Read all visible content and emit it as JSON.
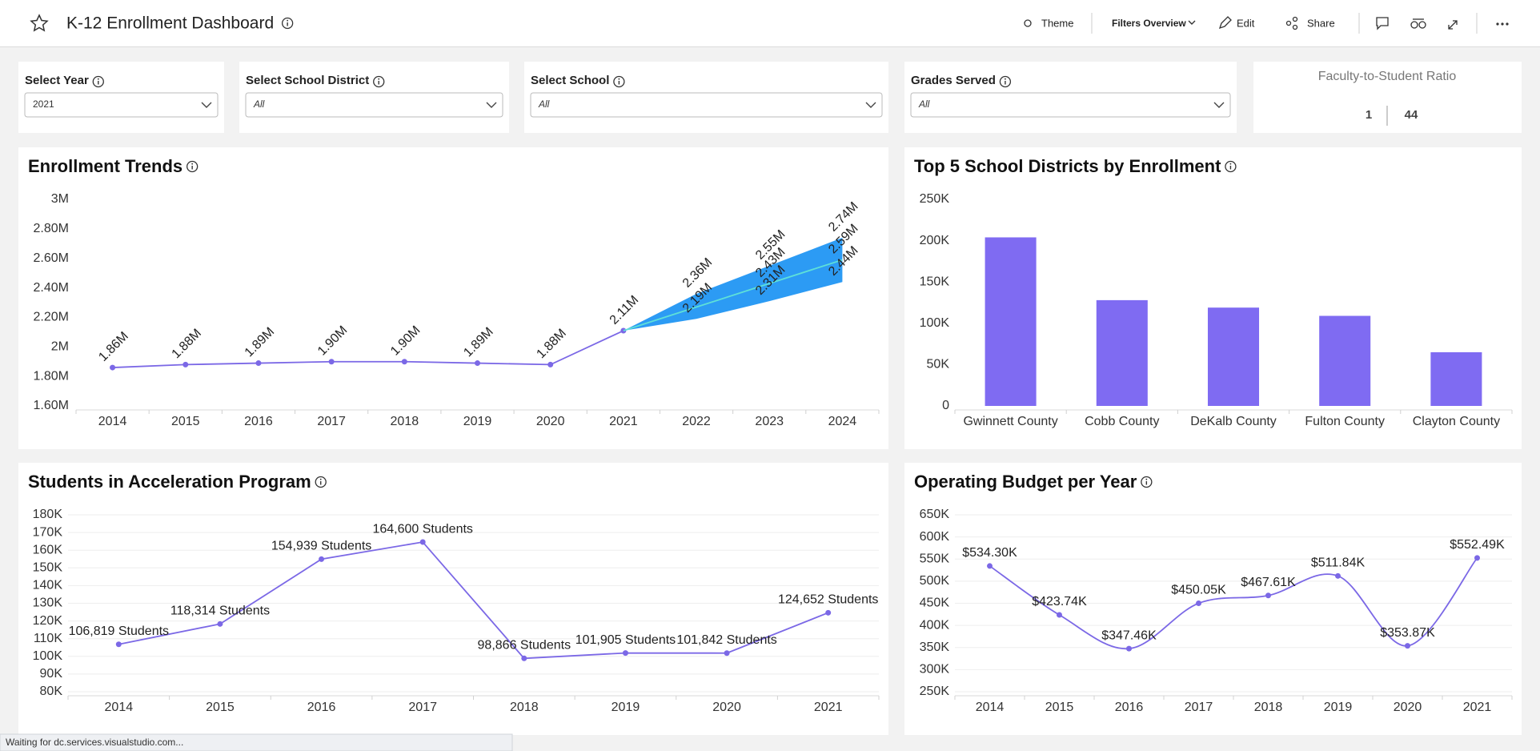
{
  "header": {
    "title": "K-12 Enrollment Dashboard",
    "actions": [
      "Theme",
      "Filters Overview",
      "Edit",
      "Share"
    ]
  },
  "filters": [
    {
      "label": "Select Year",
      "value": "2021"
    },
    {
      "label": "Select School District",
      "value": "All"
    },
    {
      "label": "Select School",
      "value": "All"
    },
    {
      "label": "Grades Served",
      "value": "All"
    }
  ],
  "kpi": {
    "title": "Faculty-to-Student Ratio",
    "left": "1",
    "right": "44"
  },
  "status": "Waiting for dc.services.visualstudio.com...",
  "chart_data": [
    {
      "type": "line",
      "title": "Enrollment Trends",
      "categories": [
        "2014",
        "2015",
        "2016",
        "2017",
        "2018",
        "2019",
        "2020",
        "2021",
        "2022",
        "2023",
        "2024"
      ],
      "ylim": [
        1.6,
        3
      ],
      "yticks": [
        {
          "value": 1.6,
          "label": "1.60M"
        },
        {
          "value": 1.8,
          "label": "1.80M"
        },
        {
          "value": 2,
          "label": "2M"
        },
        {
          "value": 2.2,
          "label": "2.20M"
        },
        {
          "value": 2.4,
          "label": "2.40M"
        },
        {
          "value": 2.6,
          "label": "2.60M"
        },
        {
          "value": 2.8,
          "label": "2.80M"
        },
        {
          "value": 3,
          "label": "3M"
        }
      ],
      "grid": false,
      "smooth": false,
      "label_rotation": -45,
      "forecast_band": {
        "color": "#2196f3",
        "upper": [
          null,
          null,
          null,
          null,
          null,
          null,
          null,
          2.11,
          2.36,
          2.55,
          2.74
        ],
        "upper_labels": [
          null,
          null,
          null,
          null,
          null,
          null,
          null,
          null,
          "2.36M",
          "2.55M",
          "2.74M"
        ],
        "lower": [
          null,
          null,
          null,
          null,
          null,
          null,
          null,
          2.11,
          2.19,
          2.31,
          2.44
        ],
        "lower_labels": [
          null,
          null,
          null,
          null,
          null,
          null,
          null,
          null,
          "2.19M",
          "2.31M",
          "2.44M"
        ]
      },
      "series": [
        {
          "color": "#7b68e6",
          "markers": true,
          "values": [
            1.86,
            1.88,
            1.89,
            1.9,
            1.9,
            1.89,
            1.88,
            2.11,
            null,
            null,
            null
          ],
          "value_labels": [
            "1.86M",
            "1.88M",
            "1.89M",
            "1.90M",
            "1.90M",
            "1.89M",
            "1.88M",
            "2.11M",
            null,
            null,
            null
          ]
        },
        {
          "color": "#5ee0d8",
          "markers": false,
          "values": [
            null,
            null,
            null,
            null,
            null,
            null,
            null,
            2.11,
            2.27,
            2.43,
            2.59
          ],
          "value_labels": [
            null,
            null,
            null,
            null,
            null,
            null,
            null,
            null,
            null,
            "2.43M",
            "2.59M"
          ]
        }
      ]
    },
    {
      "type": "bar",
      "title": "Top 5 School Districts by Enrollment",
      "categories": [
        "Gwinnett County",
        "Cobb County",
        "DeKalb County",
        "Fulton County",
        "Clayton County"
      ],
      "values": [
        204000,
        128000,
        119000,
        109000,
        65000
      ],
      "color": "#7f6bf2",
      "ylim": [
        0,
        250000
      ],
      "yticks": [
        0,
        {
          "value": 50000,
          "label": "50K"
        },
        {
          "value": 100000,
          "label": "100K"
        },
        {
          "value": 150000,
          "label": "150K"
        },
        {
          "value": 200000,
          "label": "200K"
        },
        {
          "value": 250000,
          "label": "250K"
        }
      ],
      "grid": false
    },
    {
      "type": "line",
      "title": "Students in Acceleration Program",
      "categories": [
        "2014",
        "2015",
        "2016",
        "2017",
        "2018",
        "2019",
        "2020",
        "2021"
      ],
      "ylim": [
        80000,
        180000
      ],
      "yticks": [
        {
          "value": 80000,
          "label": "80K"
        },
        {
          "value": 90000,
          "label": "90K"
        },
        {
          "value": 100000,
          "label": "100K"
        },
        {
          "value": 110000,
          "label": "110K"
        },
        {
          "value": 120000,
          "label": "120K"
        },
        {
          "value": 130000,
          "label": "130K"
        },
        {
          "value": 140000,
          "label": "140K"
        },
        {
          "value": 150000,
          "label": "150K"
        },
        {
          "value": 160000,
          "label": "160K"
        },
        {
          "value": 170000,
          "label": "170K"
        },
        {
          "value": 180000,
          "label": "180K"
        }
      ],
      "grid": true,
      "smooth": false,
      "label_rotation": 0,
      "series": [
        {
          "color": "#7b68e6",
          "markers": true,
          "values": [
            106819,
            118314,
            154939,
            164600,
            98866,
            101905,
            101842,
            124652
          ],
          "value_labels": [
            "106,819 Students",
            "118,314 Students",
            "154,939 Students",
            "164,600 Students",
            "98,866 Students",
            "101,905 Students",
            "101,842 Students",
            "124,652 Students"
          ]
        }
      ]
    },
    {
      "type": "line",
      "title": "Operating Budget per Year",
      "categories": [
        "2014",
        "2015",
        "2016",
        "2017",
        "2018",
        "2019",
        "2020",
        "2021"
      ],
      "ylim": [
        250000,
        650000
      ],
      "yticks": [
        {
          "value": 250000,
          "label": "250K"
        },
        {
          "value": 300000,
          "label": "300K"
        },
        {
          "value": 350000,
          "label": "350K"
        },
        {
          "value": 400000,
          "label": "400K"
        },
        {
          "value": 450000,
          "label": "450K"
        },
        {
          "value": 500000,
          "label": "500K"
        },
        {
          "value": 550000,
          "label": "550K"
        },
        {
          "value": 600000,
          "label": "600K"
        },
        {
          "value": 650000,
          "label": "650K"
        }
      ],
      "grid": true,
      "smooth": true,
      "label_rotation": 0,
      "series": [
        {
          "color": "#7b68e6",
          "markers": true,
          "values": [
            534300,
            423740,
            347460,
            450050,
            467610,
            511840,
            353870,
            552490
          ],
          "value_labels": [
            "$534.30K",
            "$423.74K",
            "$347.46K",
            "$450.05K",
            "$467.61K",
            "$511.84K",
            "$353.87K",
            "$552.49K"
          ]
        }
      ]
    }
  ]
}
